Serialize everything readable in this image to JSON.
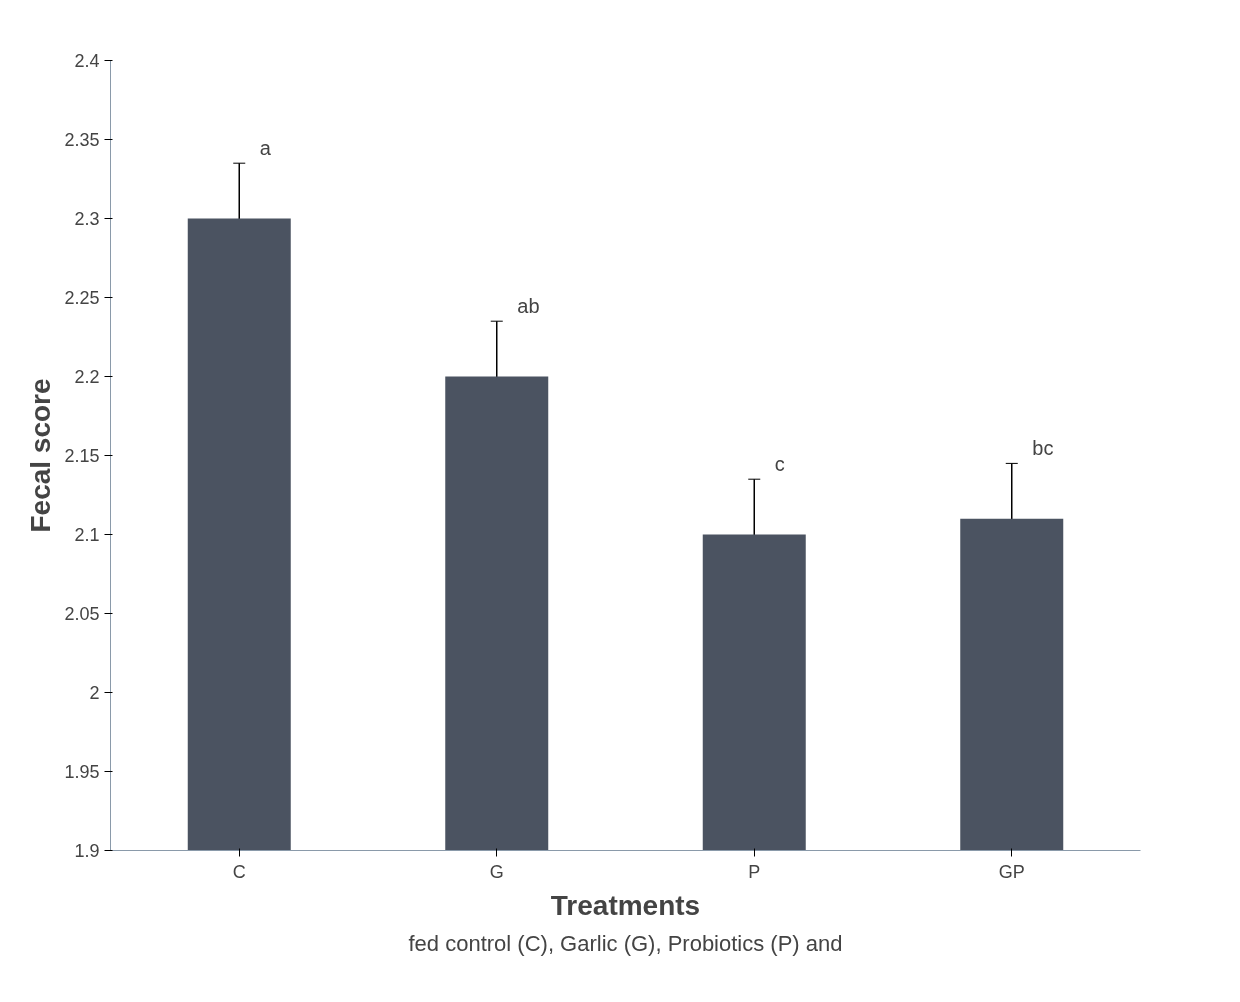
{
  "chart_data": {
    "type": "bar",
    "xlabel": "Treatments",
    "ylabel": "Fecal score",
    "categories": [
      "C",
      "G",
      "P",
      "GP"
    ],
    "values": [
      2.3,
      2.2,
      2.1,
      2.11
    ],
    "errors": [
      0.035,
      0.035,
      0.035,
      0.035
    ],
    "color": "#4b5361",
    "ylim": [
      1.9,
      2.4
    ],
    "yticks": [
      1.9,
      1.95,
      2,
      2.05,
      2.1,
      2.15,
      2.2,
      2.25,
      2.3,
      2.35,
      2.4
    ],
    "grid": false,
    "annotations": [
      {
        "text": "a",
        "x": "C",
        "y": 2.335
      },
      {
        "text": "ab",
        "x": "G",
        "y": 2.235
      },
      {
        "text": "c",
        "x": "P",
        "y": 2.135
      },
      {
        "text": "bc",
        "x": "GP",
        "y": 2.145
      },
      "fed control (C), Garlic (G), Probiotics (P) and"
    ]
  }
}
